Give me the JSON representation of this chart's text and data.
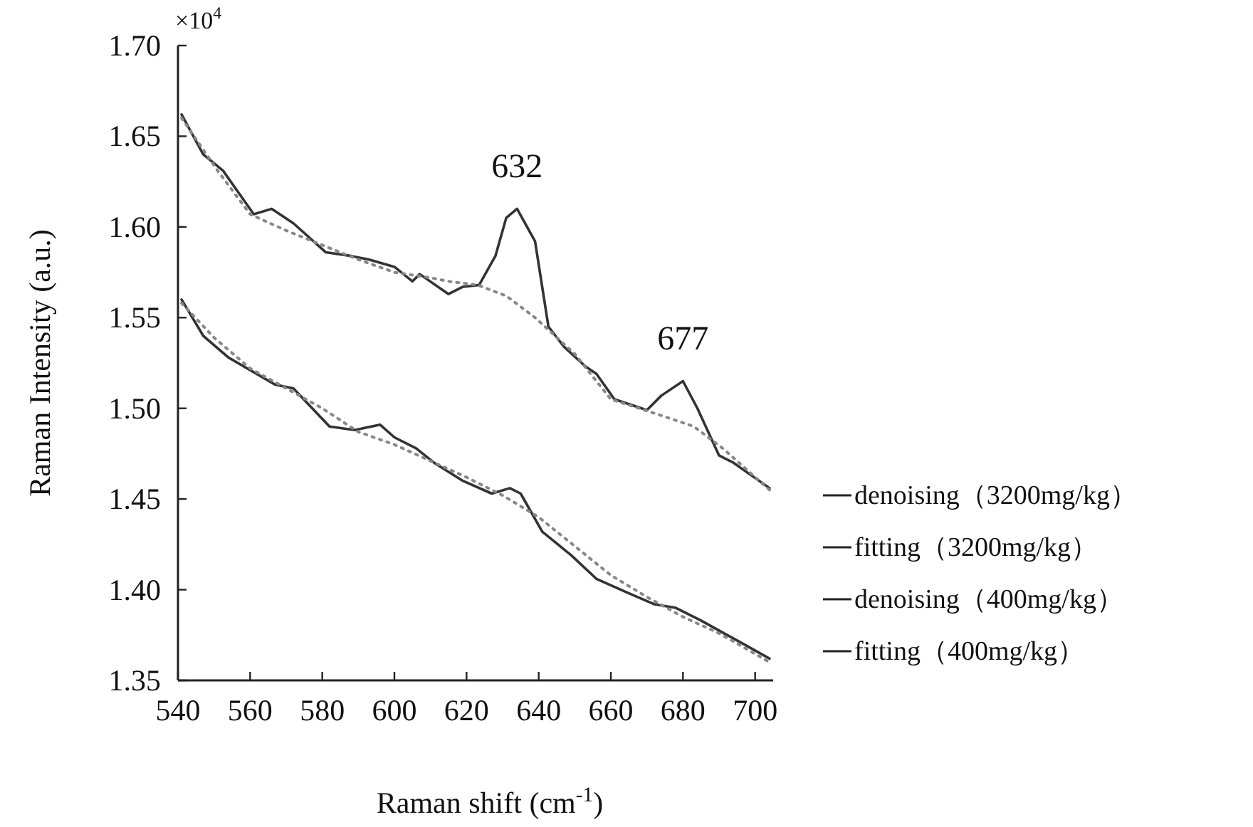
{
  "chart_data": {
    "type": "line",
    "xlabel": "Raman shift (cm$^{-1}$)",
    "ylabel": "Raman Intensity (a.u.)",
    "xlim": [
      540,
      705
    ],
    "ylim": [
      1.35,
      1.7
    ],
    "xticks": [
      540,
      560,
      580,
      600,
      620,
      640,
      660,
      680,
      700
    ],
    "yticks": [
      1.35,
      {
        "value": 1.4,
        "label": "1.40"
      },
      1.45,
      {
        "value": 1.5,
        "label": "1.50"
      },
      1.55,
      {
        "value": 1.6,
        "label": "1.60"
      },
      1.65,
      {
        "value": 1.7,
        "label": "1.70"
      }
    ],
    "legend": "right",
    "annotations": [
      "×10$^{4}$",
      {
        "text": "632",
        "x": 634,
        "y": 1.61
      },
      {
        "text": "677",
        "x": 680,
        "y": 1.515
      }
    ],
    "series": [
      {
        "name": "denoising（3200mg/kg）",
        "color": "#333333",
        "line_style": "solid",
        "x": [
          541,
          547,
          552.5,
          561,
          566,
          572,
          581,
          588,
          593,
          600,
          605,
          607,
          615,
          619,
          623.5,
          628,
          631,
          634,
          639,
          642.7,
          647,
          653,
          656,
          661,
          670,
          674,
          680,
          684,
          690,
          694,
          704
        ],
        "values": [
          1.662,
          1.64,
          1.631,
          1.607,
          1.61,
          1.602,
          1.586,
          1.584,
          1.582,
          1.578,
          1.57,
          1.574,
          1.563,
          1.567,
          1.568,
          1.584,
          1.605,
          1.61,
          1.592,
          1.545,
          1.534,
          1.523,
          1.519,
          1.505,
          1.499,
          1.507,
          1.515,
          1.5,
          1.474,
          1.47,
          1.456
        ]
      },
      {
        "name": "fitting（3200mg/kg）",
        "color": "#888888",
        "line_style": "dotted",
        "x": [
          541,
          551,
          560,
          570,
          580,
          590,
          600,
          610,
          615,
          623,
          631,
          639,
          650,
          660,
          672.5,
          683,
          691,
          704
        ],
        "values": [
          1.66,
          1.631,
          1.607,
          1.598,
          1.59,
          1.582,
          1.575,
          1.572,
          1.57,
          1.568,
          1.562,
          1.55,
          1.53,
          1.505,
          1.497,
          1.49,
          1.478,
          1.455
        ]
      },
      {
        "name": "denoising（400mg/kg）",
        "color": "#333333",
        "line_style": "solid",
        "x": [
          541,
          547,
          554,
          567,
          572,
          582,
          589,
          596,
          600,
          606,
          611,
          619,
          627,
          632,
          635,
          641,
          649,
          656,
          665,
          672,
          678,
          685,
          695,
          704
        ],
        "values": [
          1.56,
          1.54,
          1.528,
          1.513,
          1.511,
          1.49,
          1.488,
          1.491,
          1.484,
          1.478,
          1.47,
          1.46,
          1.453,
          1.456,
          1.453,
          1.432,
          1.419,
          1.406,
          1.398,
          1.392,
          1.39,
          1.383,
          1.372,
          1.362
        ]
      },
      {
        "name": "fitting（400mg/kg）",
        "color": "#888888",
        "line_style": "dotted",
        "x": [
          541,
          550,
          560,
          570,
          580,
          590,
          600,
          610,
          620,
          630,
          640,
          650,
          660,
          670,
          680,
          690,
          704
        ],
        "values": [
          1.558,
          1.539,
          1.522,
          1.511,
          1.5,
          1.487,
          1.48,
          1.471,
          1.462,
          1.452,
          1.44,
          1.424,
          1.408,
          1.396,
          1.385,
          1.376,
          1.36
        ]
      }
    ]
  }
}
